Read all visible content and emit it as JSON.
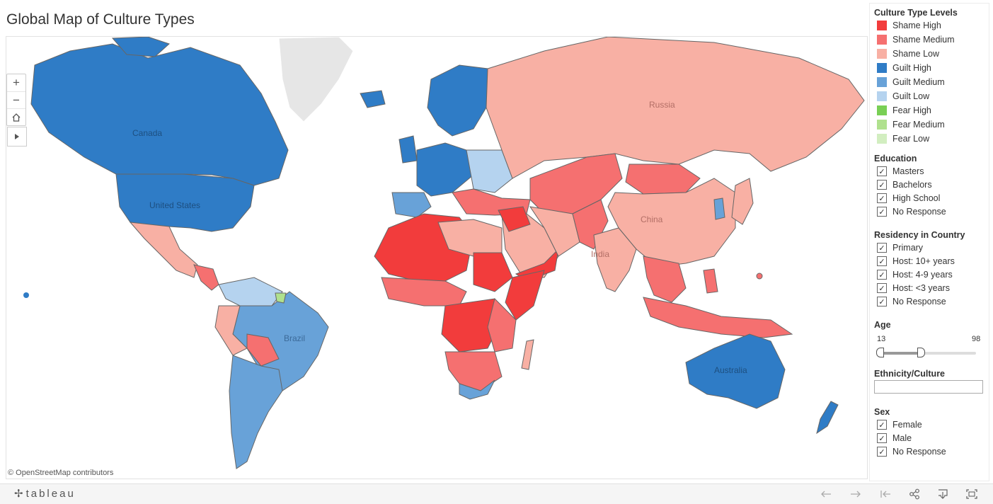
{
  "title": "Global Map of Culture Types",
  "map": {
    "attribution": "© OpenStreetMap contributors",
    "country_labels": [
      "Russia",
      "Canada",
      "United States",
      "China",
      "India",
      "Brazil",
      "Australia"
    ],
    "controls": {
      "zoom_in": "+",
      "zoom_out": "−",
      "home_icon": "home-icon",
      "play_icon": "play-icon"
    }
  },
  "legend": {
    "title": "Culture Type Levels",
    "items": [
      {
        "label": "Shame High",
        "color": "#f23c3c"
      },
      {
        "label": "Shame Medium",
        "color": "#f57070"
      },
      {
        "label": "Shame Low",
        "color": "#f8b0a4"
      },
      {
        "label": "Guilt High",
        "color": "#2f7cc6"
      },
      {
        "label": "Guilt Medium",
        "color": "#68a2d8"
      },
      {
        "label": "Guilt Low",
        "color": "#b5d3ef"
      },
      {
        "label": "Fear High",
        "color": "#79cf55"
      },
      {
        "label": "Fear Medium",
        "color": "#b0e18e"
      },
      {
        "label": "Fear Low",
        "color": "#d2eec0"
      }
    ]
  },
  "filters": {
    "education": {
      "title": "Education",
      "options": [
        "Masters",
        "Bachelors",
        "High School",
        "No Response"
      ]
    },
    "residency": {
      "title": "Residency in Country",
      "options": [
        "Primary",
        "Host: 10+ years",
        "Host: 4-9 years",
        "Host: <3 years",
        "No Response"
      ]
    },
    "age": {
      "title": "Age",
      "min": "13",
      "max": "98",
      "range_low": 13,
      "range_high": 50
    },
    "ethnicity": {
      "title": "Ethnicity/Culture",
      "value": ""
    },
    "sex": {
      "title": "Sex",
      "options": [
        "Female",
        "Male",
        "No Response"
      ]
    }
  },
  "toolbar": {
    "brand": "tableau",
    "checkmark": "✓"
  }
}
